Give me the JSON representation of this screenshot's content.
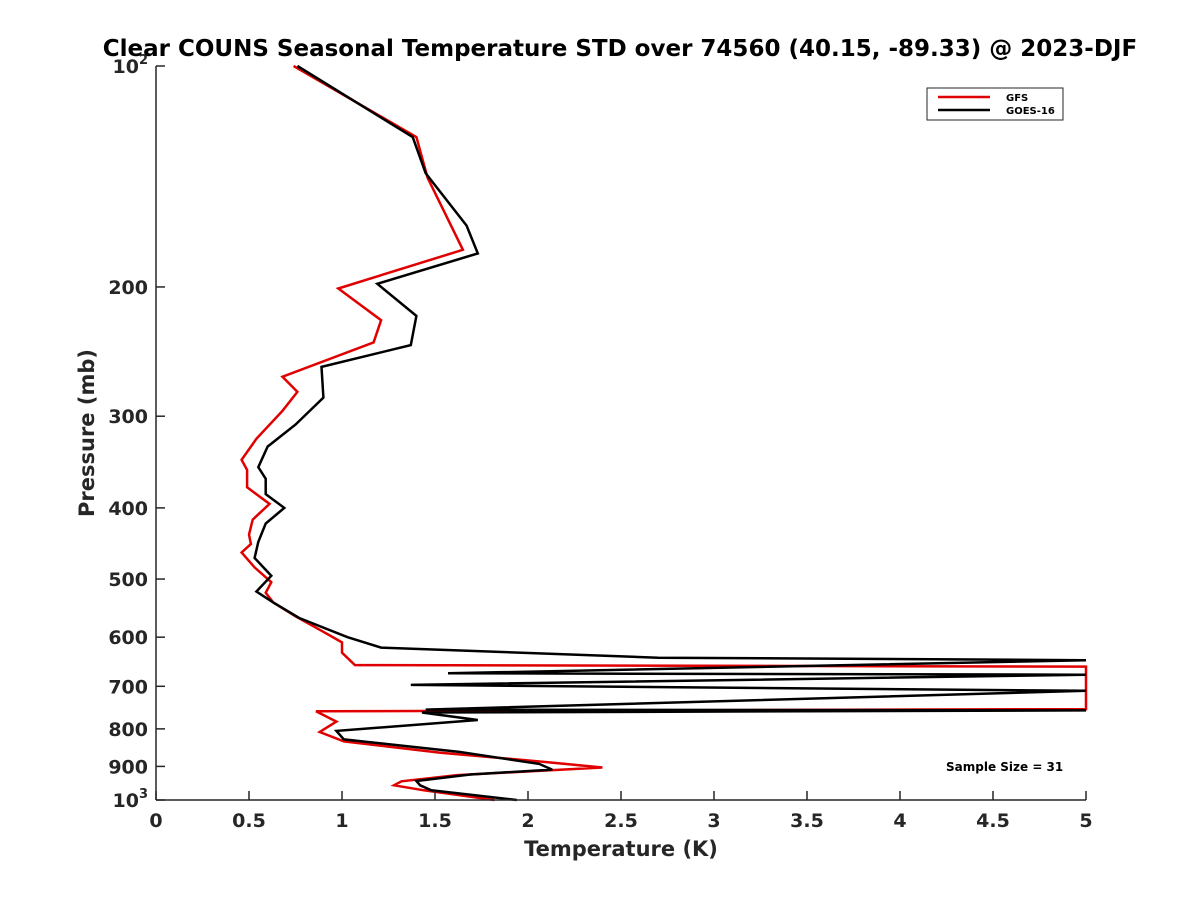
{
  "chart_data": {
    "type": "line",
    "title": "Clear COUNS Seasonal Temperature STD over 74560 (40.15, -89.33) @ 2023-DJF",
    "xlabel": "Temperature (K)",
    "ylabel": "Pressure (mb)",
    "xlim": [
      0,
      5
    ],
    "ylim": [
      100,
      1000
    ],
    "yscale": "log",
    "yreversed": true,
    "x_ticks": [
      0,
      0.5,
      1,
      1.5,
      2,
      2.5,
      3,
      3.5,
      4,
      4.5,
      5
    ],
    "x_tick_labels": [
      "0",
      "0.5",
      "1",
      "1.5",
      "2",
      "2.5",
      "3",
      "3.5",
      "4",
      "4.5",
      "5"
    ],
    "y_ticks": [
      {
        "value": 100,
        "base": "10",
        "exp": "2"
      },
      {
        "value": 200,
        "label": "200"
      },
      {
        "value": 300,
        "label": "300"
      },
      {
        "value": 400,
        "label": "400"
      },
      {
        "value": 500,
        "label": "500"
      },
      {
        "value": 600,
        "label": "600"
      },
      {
        "value": 700,
        "label": "700"
      },
      {
        "value": 800,
        "label": "800"
      },
      {
        "value": 900,
        "label": "900"
      },
      {
        "value": 1000,
        "base": "10",
        "exp": "3"
      }
    ],
    "legend_position": "top-right",
    "annotation": "Sample Size = 31",
    "series": [
      {
        "name": "GFS",
        "color": "#e00000",
        "points": [
          [
            0.74,
            100
          ],
          [
            1.4,
            125
          ],
          [
            1.46,
            142
          ],
          [
            1.65,
            178
          ],
          [
            0.98,
            201
          ],
          [
            1.21,
            222
          ],
          [
            1.17,
            238
          ],
          [
            0.68,
            265
          ],
          [
            0.76,
            278
          ],
          [
            0.68,
            295
          ],
          [
            0.54,
            322
          ],
          [
            0.46,
            344
          ],
          [
            0.49,
            355
          ],
          [
            0.49,
            375
          ],
          [
            0.61,
            395
          ],
          [
            0.52,
            415
          ],
          [
            0.5,
            435
          ],
          [
            0.51,
            448
          ],
          [
            0.46,
            460
          ],
          [
            0.53,
            482
          ],
          [
            0.62,
            505
          ],
          [
            0.59,
            522
          ],
          [
            0.63,
            538
          ],
          [
            0.75,
            562
          ],
          [
            0.9,
            590
          ],
          [
            1.0,
            610
          ],
          [
            1.0,
            630
          ],
          [
            1.07,
            655
          ],
          [
            5.0,
            658
          ],
          [
            5.0,
            752
          ],
          [
            0.86,
            757
          ],
          [
            0.97,
            782
          ],
          [
            0.88,
            808
          ],
          [
            1.01,
            832
          ],
          [
            1.53,
            862
          ],
          [
            2.1,
            888
          ],
          [
            2.4,
            903
          ],
          [
            1.62,
            925
          ],
          [
            1.32,
            943
          ],
          [
            1.28,
            955
          ],
          [
            1.44,
            970
          ],
          [
            1.82,
            1000
          ]
        ]
      },
      {
        "name": "GOES-16",
        "color": "#000000",
        "points": [
          [
            0.76,
            100
          ],
          [
            1.38,
            125
          ],
          [
            1.45,
            140
          ],
          [
            1.67,
            165
          ],
          [
            1.73,
            180
          ],
          [
            1.19,
            198
          ],
          [
            1.4,
            219
          ],
          [
            1.37,
            240
          ],
          [
            0.89,
            257
          ],
          [
            0.9,
            283
          ],
          [
            0.75,
            308
          ],
          [
            0.6,
            330
          ],
          [
            0.55,
            352
          ],
          [
            0.59,
            365
          ],
          [
            0.59,
            383
          ],
          [
            0.69,
            400
          ],
          [
            0.59,
            420
          ],
          [
            0.55,
            445
          ],
          [
            0.53,
            468
          ],
          [
            0.62,
            495
          ],
          [
            0.54,
            520
          ],
          [
            0.63,
            538
          ],
          [
            0.77,
            565
          ],
          [
            1.03,
            600
          ],
          [
            1.21,
            620
          ],
          [
            2.7,
            640
          ],
          [
            5.0,
            645
          ],
          [
            1.57,
            672
          ],
          [
            5.0,
            675
          ],
          [
            1.37,
            697
          ],
          [
            5.0,
            710
          ],
          [
            1.45,
            753
          ],
          [
            5.0,
            755
          ],
          [
            1.43,
            760
          ],
          [
            1.73,
            778
          ],
          [
            0.97,
            805
          ],
          [
            1.01,
            827
          ],
          [
            1.63,
            860
          ],
          [
            2.06,
            893
          ],
          [
            2.13,
            909
          ],
          [
            1.69,
            923
          ],
          [
            1.4,
            942
          ],
          [
            1.42,
            955
          ],
          [
            1.48,
            970
          ],
          [
            1.94,
            1000
          ]
        ]
      }
    ]
  }
}
